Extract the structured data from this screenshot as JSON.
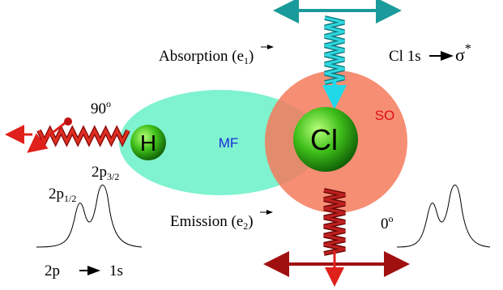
{
  "absorption": {
    "label": "Absorption (",
    "vector": "e",
    "sub": "1",
    "close": ")"
  },
  "transition": {
    "from": "Cl 1s",
    "to": "σ",
    "star": "*"
  },
  "angle_90": {
    "value": "90",
    "degree": "o"
  },
  "angle_0": {
    "value": "0",
    "degree": "o"
  },
  "atoms": {
    "h": "H",
    "cl": "Cl"
  },
  "regions": {
    "mf": "MF",
    "so": "SO"
  },
  "peaks": {
    "p12": {
      "label": "2p",
      "sub": "1/2"
    },
    "p32": {
      "label": "2p",
      "sub": "3/2"
    }
  },
  "emission": {
    "label": "Emission (",
    "vector": "e",
    "sub": "2",
    "close": ")"
  },
  "emission_transition": {
    "from": "2p",
    "to": "1s"
  }
}
